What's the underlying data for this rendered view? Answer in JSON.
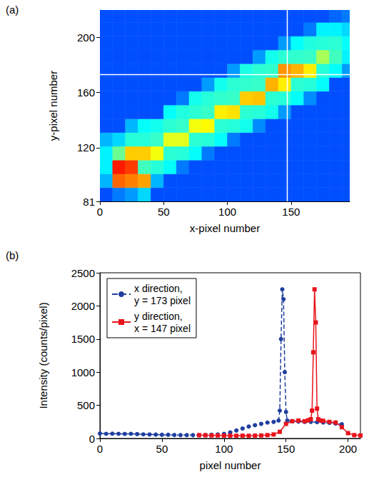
{
  "chart_data": [
    {
      "type": "heatmap",
      "panel": "(a)",
      "x_label": "x-pixel number",
      "y_label": "y-pixel number",
      "xlim": [
        0,
        196
      ],
      "ylim": [
        81,
        220
      ],
      "xticks": [
        0,
        50,
        100,
        150
      ],
      "yticks": [
        81,
        120,
        160,
        200
      ],
      "x_edges": [
        0,
        10,
        20,
        30,
        40,
        50,
        60,
        70,
        80,
        90,
        100,
        110,
        120,
        130,
        140,
        150,
        160,
        170,
        180,
        190,
        200
      ],
      "y_edges": [
        81,
        91,
        101,
        111,
        121,
        131,
        141,
        151,
        161,
        171,
        181,
        191,
        201,
        211,
        221
      ],
      "z": [
        [
          60,
          80,
          100,
          150,
          60,
          60,
          60,
          60,
          60,
          60,
          60,
          60,
          60,
          60,
          60,
          60,
          60,
          60,
          60,
          60
        ],
        [
          120,
          3000,
          2500,
          2000,
          120,
          60,
          60,
          60,
          60,
          60,
          60,
          60,
          60,
          60,
          60,
          60,
          60,
          60,
          60,
          60
        ],
        [
          180,
          5000,
          4000,
          300,
          250,
          200,
          80,
          60,
          60,
          60,
          60,
          60,
          60,
          60,
          60,
          60,
          60,
          60,
          60,
          60
        ],
        [
          180,
          400,
          1500,
          1500,
          1000,
          260,
          250,
          200,
          80,
          60,
          60,
          60,
          60,
          60,
          60,
          60,
          60,
          60,
          60,
          60
        ],
        [
          120,
          150,
          250,
          250,
          280,
          900,
          900,
          260,
          250,
          200,
          80,
          60,
          60,
          60,
          60,
          60,
          60,
          60,
          60,
          60
        ],
        [
          60,
          60,
          120,
          200,
          220,
          260,
          280,
          1000,
          1100,
          260,
          250,
          220,
          90,
          60,
          60,
          60,
          60,
          60,
          60,
          60
        ],
        [
          60,
          60,
          60,
          60,
          60,
          200,
          240,
          260,
          280,
          1200,
          1300,
          260,
          250,
          220,
          100,
          60,
          60,
          60,
          60,
          60
        ],
        [
          60,
          60,
          60,
          60,
          60,
          60,
          80,
          220,
          250,
          270,
          280,
          1500,
          1600,
          260,
          250,
          200,
          90,
          60,
          60,
          60
        ],
        [
          60,
          60,
          60,
          60,
          60,
          60,
          60,
          60,
          100,
          220,
          260,
          270,
          280,
          1800,
          1200,
          260,
          250,
          200,
          60,
          60
        ],
        [
          60,
          60,
          60,
          60,
          60,
          60,
          60,
          60,
          60,
          60,
          100,
          230,
          260,
          270,
          2200,
          1800,
          1200,
          250,
          200,
          100
        ],
        [
          60,
          60,
          60,
          60,
          60,
          60,
          60,
          60,
          60,
          60,
          60,
          60,
          100,
          220,
          260,
          270,
          280,
          600,
          300,
          180
        ],
        [
          60,
          60,
          60,
          60,
          60,
          60,
          60,
          60,
          60,
          60,
          60,
          60,
          60,
          60,
          100,
          200,
          240,
          250,
          260,
          200
        ],
        [
          60,
          60,
          60,
          60,
          60,
          60,
          60,
          60,
          60,
          60,
          60,
          60,
          60,
          60,
          60,
          60,
          80,
          180,
          180,
          150
        ],
        [
          60,
          60,
          60,
          60,
          60,
          60,
          60,
          60,
          60,
          60,
          60,
          60,
          60,
          60,
          60,
          60,
          60,
          60,
          70,
          80
        ]
      ],
      "color_range": [
        15,
        14000
      ],
      "crosshair": {
        "x": 147,
        "y": 173
      }
    },
    {
      "type": "line",
      "panel": "(b)",
      "x_label": "pixel number",
      "y_label": "Intensity (counts/pixel)",
      "xlim": [
        0,
        210
      ],
      "ylim": [
        0,
        2500
      ],
      "xticks": [
        0,
        50,
        100,
        150,
        200
      ],
      "yticks": [
        0,
        500,
        1000,
        1500,
        2000,
        2500
      ],
      "legend": "upper left",
      "series": [
        {
          "name": "x direction,\ny = 173 pixel",
          "color": "#1f3f9f",
          "marker": "circle",
          "line_style": "dashed",
          "x": [
            0,
            5,
            10,
            15,
            20,
            25,
            30,
            35,
            40,
            45,
            50,
            55,
            60,
            65,
            70,
            75,
            80,
            85,
            90,
            95,
            100,
            105,
            110,
            115,
            120,
            125,
            130,
            135,
            140,
            144,
            145,
            146,
            147,
            148,
            149,
            150,
            151,
            155,
            160,
            165,
            170,
            175,
            180,
            185,
            190,
            195
          ],
          "values": [
            75,
            70,
            72,
            70,
            68,
            70,
            65,
            62,
            60,
            58,
            55,
            55,
            52,
            50,
            50,
            50,
            48,
            50,
            55,
            60,
            70,
            90,
            120,
            150,
            180,
            200,
            220,
            240,
            250,
            270,
            420,
            1500,
            2250,
            2100,
            1000,
            400,
            270,
            260,
            255,
            250,
            250,
            245,
            240,
            235,
            225,
            215
          ]
        },
        {
          "name": "y direction,\nx = 147 pixel",
          "color": "#e8141c",
          "marker": "square",
          "line_style": "solid",
          "x": [
            80,
            85,
            90,
            95,
            100,
            105,
            110,
            115,
            120,
            125,
            130,
            135,
            140,
            145,
            150,
            155,
            160,
            165,
            168,
            170,
            171,
            172,
            173,
            174,
            175,
            176,
            178,
            180,
            185,
            190,
            195,
            200,
            205,
            210
          ],
          "values": [
            50,
            48,
            45,
            45,
            42,
            42,
            40,
            42,
            40,
            42,
            45,
            50,
            60,
            100,
            220,
            260,
            270,
            260,
            275,
            290,
            420,
            1300,
            2250,
            1750,
            450,
            290,
            270,
            265,
            250,
            240,
            170,
            80,
            50,
            45
          ]
        }
      ]
    }
  ]
}
